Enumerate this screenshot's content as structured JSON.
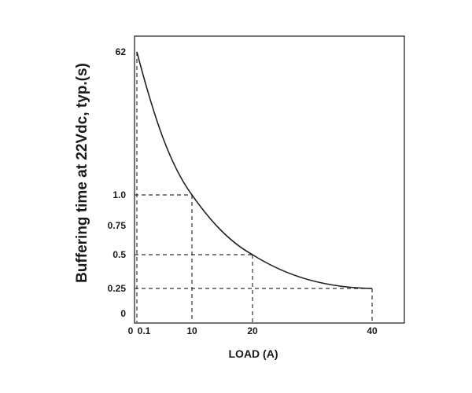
{
  "chart_data": {
    "type": "line",
    "title": "",
    "xlabel": "LOAD (A)",
    "ylabel": "Buffering time at 22Vdc, typ.(s)",
    "x_ticks": [
      "0",
      "0.1",
      "10",
      "20",
      "40"
    ],
    "y_ticks": [
      "0",
      "0.25",
      "0.5",
      "0.75",
      "1.0",
      "62"
    ],
    "series": [
      {
        "x": [
          0.1,
          2,
          5,
          10,
          15,
          20,
          25,
          30,
          35,
          40
        ],
        "y": [
          "62",
          "~16",
          "~3.5",
          "1.0",
          "0.7",
          "0.5",
          "0.37",
          "0.29",
          "0.26",
          "0.25"
        ],
        "color": "#222222"
      }
    ],
    "reference_points": [
      {
        "x": "0.1",
        "y": "62"
      },
      {
        "x": "10",
        "y": "1.0"
      },
      {
        "x": "20",
        "y": "0.5"
      },
      {
        "x": "40",
        "y": "0.25"
      }
    ],
    "grid": false,
    "reference_lines": "dashed"
  }
}
